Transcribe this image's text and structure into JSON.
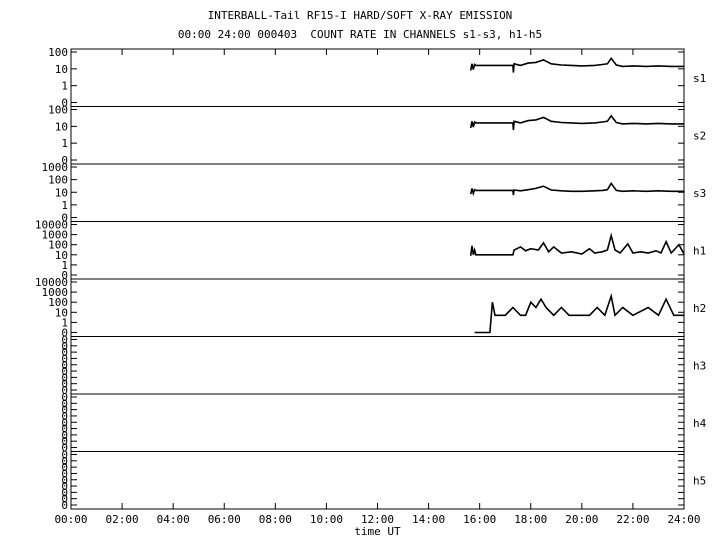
{
  "title_line1": "INTERBALL-Tail RF15-I HARD/SOFT X-RAY EMISSION",
  "title_line2": "00:00 24:00 000403  COUNT RATE IN CHANNELS s1-s3, h1-h5",
  "chart_data": {
    "type": "line",
    "xlabel": "time UT",
    "xlim": [
      0,
      24
    ],
    "x_tick_labels": [
      "00:00",
      "02:00",
      "04:00",
      "06:00",
      "08:00",
      "10:00",
      "12:00",
      "14:00",
      "16:00",
      "18:00",
      "20:00",
      "22:00",
      "24:00"
    ],
    "y_scale": "log",
    "panels": [
      {
        "name": "s1",
        "tick_labels": [
          "100",
          "10",
          "1",
          "0"
        ],
        "decades": 2,
        "data": [
          [
            15.65,
            8
          ],
          [
            15.7,
            20
          ],
          [
            15.75,
            9
          ],
          [
            15.8,
            18
          ],
          [
            15.85,
            16
          ],
          [
            17.3,
            16
          ],
          [
            17.32,
            6
          ],
          [
            17.35,
            20
          ],
          [
            17.6,
            16
          ],
          [
            17.9,
            22
          ],
          [
            18.2,
            24
          ],
          [
            18.5,
            34
          ],
          [
            18.8,
            20
          ],
          [
            19.2,
            17
          ],
          [
            19.6,
            16
          ],
          [
            20.0,
            15
          ],
          [
            20.5,
            16
          ],
          [
            20.8,
            18
          ],
          [
            21.0,
            20
          ],
          [
            21.15,
            42
          ],
          [
            21.35,
            17
          ],
          [
            21.6,
            14
          ],
          [
            22.0,
            15
          ],
          [
            22.5,
            14
          ],
          [
            23.0,
            15
          ],
          [
            23.5,
            14
          ],
          [
            24.0,
            14
          ]
        ]
      },
      {
        "name": "s2",
        "tick_labels": [
          "100",
          "10",
          "1",
          "0"
        ],
        "decades": 2,
        "data": [
          [
            15.65,
            8
          ],
          [
            15.7,
            20
          ],
          [
            15.75,
            9
          ],
          [
            15.8,
            18
          ],
          [
            15.85,
            16
          ],
          [
            17.3,
            16
          ],
          [
            17.32,
            6
          ],
          [
            17.35,
            20
          ],
          [
            17.6,
            16
          ],
          [
            17.9,
            22
          ],
          [
            18.2,
            24
          ],
          [
            18.5,
            34
          ],
          [
            18.8,
            20
          ],
          [
            19.2,
            17
          ],
          [
            19.6,
            16
          ],
          [
            20.0,
            15
          ],
          [
            20.5,
            16
          ],
          [
            20.8,
            18
          ],
          [
            21.0,
            20
          ],
          [
            21.15,
            42
          ],
          [
            21.35,
            17
          ],
          [
            21.6,
            14
          ],
          [
            22.0,
            15
          ],
          [
            22.5,
            14
          ],
          [
            23.0,
            15
          ],
          [
            23.5,
            14
          ],
          [
            24.0,
            14
          ]
        ]
      },
      {
        "name": "s3",
        "tick_labels": [
          "1000",
          "100",
          "10",
          "1",
          "0"
        ],
        "decades": 3,
        "data": [
          [
            15.65,
            7
          ],
          [
            15.7,
            20
          ],
          [
            15.75,
            8
          ],
          [
            15.8,
            16
          ],
          [
            15.85,
            14
          ],
          [
            17.3,
            14
          ],
          [
            17.32,
            6
          ],
          [
            17.35,
            15
          ],
          [
            17.6,
            13
          ],
          [
            17.9,
            16
          ],
          [
            18.2,
            20
          ],
          [
            18.5,
            30
          ],
          [
            18.8,
            15
          ],
          [
            19.2,
            13
          ],
          [
            19.6,
            12
          ],
          [
            20.0,
            12
          ],
          [
            20.5,
            13
          ],
          [
            20.8,
            14
          ],
          [
            21.0,
            16
          ],
          [
            21.15,
            50
          ],
          [
            21.35,
            14
          ],
          [
            21.6,
            12
          ],
          [
            22.0,
            13
          ],
          [
            22.5,
            12
          ],
          [
            23.0,
            13
          ],
          [
            23.5,
            12
          ],
          [
            24.0,
            12
          ]
        ]
      },
      {
        "name": "h1",
        "tick_labels": [
          "10000",
          "1000",
          "100",
          "10",
          "1",
          "0"
        ],
        "decades": 4,
        "data": [
          [
            15.65,
            8
          ],
          [
            15.7,
            80
          ],
          [
            15.75,
            10
          ],
          [
            15.8,
            30
          ],
          [
            15.85,
            10
          ],
          [
            17.3,
            10
          ],
          [
            17.35,
            30
          ],
          [
            17.6,
            60
          ],
          [
            17.8,
            25
          ],
          [
            18.0,
            40
          ],
          [
            18.3,
            30
          ],
          [
            18.5,
            150
          ],
          [
            18.7,
            20
          ],
          [
            18.9,
            60
          ],
          [
            19.2,
            15
          ],
          [
            19.6,
            20
          ],
          [
            20.0,
            12
          ],
          [
            20.3,
            40
          ],
          [
            20.5,
            15
          ],
          [
            20.8,
            20
          ],
          [
            21.0,
            30
          ],
          [
            21.15,
            800
          ],
          [
            21.3,
            30
          ],
          [
            21.5,
            15
          ],
          [
            21.8,
            120
          ],
          [
            22.0,
            15
          ],
          [
            22.3,
            20
          ],
          [
            22.6,
            15
          ],
          [
            22.9,
            25
          ],
          [
            23.1,
            15
          ],
          [
            23.3,
            200
          ],
          [
            23.5,
            15
          ],
          [
            23.8,
            100
          ],
          [
            24.0,
            12
          ]
        ]
      },
      {
        "name": "h2",
        "tick_labels": [
          "10000",
          "1000",
          "100",
          "10",
          "1",
          "0"
        ],
        "decades": 4,
        "data": [
          [
            15.8,
            0
          ],
          [
            16.1,
            0
          ],
          [
            16.2,
            0
          ],
          [
            16.3,
            0
          ],
          [
            16.4,
            0
          ],
          [
            16.5,
            100
          ],
          [
            16.6,
            5
          ],
          [
            17.0,
            5
          ],
          [
            17.3,
            30
          ],
          [
            17.6,
            5
          ],
          [
            17.8,
            5
          ],
          [
            18.0,
            100
          ],
          [
            18.2,
            30
          ],
          [
            18.4,
            200
          ],
          [
            18.6,
            30
          ],
          [
            18.9,
            5
          ],
          [
            19.2,
            30
          ],
          [
            19.5,
            5
          ],
          [
            20.0,
            5
          ],
          [
            20.3,
            5
          ],
          [
            20.6,
            30
          ],
          [
            20.9,
            5
          ],
          [
            21.15,
            400
          ],
          [
            21.3,
            5
          ],
          [
            21.6,
            30
          ],
          [
            22.0,
            5
          ],
          [
            22.6,
            30
          ],
          [
            23.0,
            5
          ],
          [
            23.3,
            200
          ],
          [
            23.6,
            5
          ],
          [
            24.0,
            5
          ]
        ]
      },
      {
        "name": "h3",
        "tick_labels": [
          "0",
          "0",
          "0",
          "0",
          "0",
          "0",
          "0",
          "0",
          "0"
        ],
        "decades": 0,
        "data": []
      },
      {
        "name": "h4",
        "tick_labels": [
          "0",
          "0",
          "0",
          "0",
          "0",
          "0",
          "0",
          "0",
          "0"
        ],
        "decades": 0,
        "data": []
      },
      {
        "name": "h5",
        "tick_labels": [
          "0",
          "0",
          "0",
          "0",
          "0",
          "0",
          "0",
          "0",
          "0"
        ],
        "decades": 0,
        "data": []
      }
    ]
  }
}
